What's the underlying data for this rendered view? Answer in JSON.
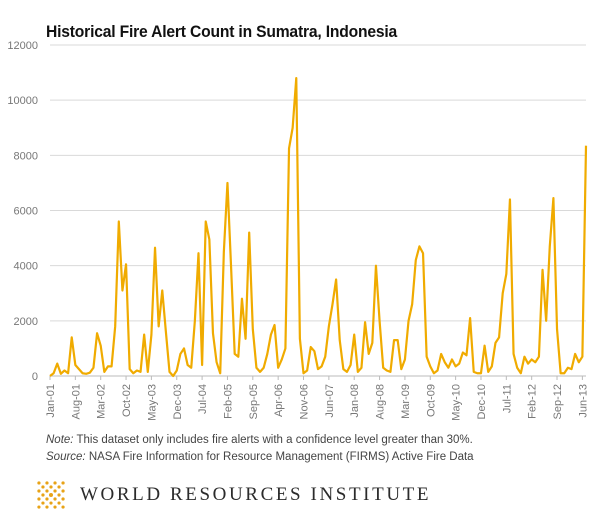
{
  "chart_data": {
    "type": "line",
    "title": "Historical Fire Alert Count in Sumatra, Indonesia",
    "xlabel": "",
    "ylabel": "",
    "ylim": [
      0,
      12000
    ],
    "yticks": [
      0,
      2000,
      4000,
      6000,
      8000,
      10000,
      12000
    ],
    "ytick_labels": [
      "0",
      "2000",
      "4000",
      "6000",
      "8000",
      "10000",
      "12000"
    ],
    "grid": true,
    "legend": "none",
    "line_color": "#f0ab00",
    "xtick_labels": [
      "Jan-01",
      "Aug-01",
      "Mar-02",
      "Oct-02",
      "May-03",
      "Dec-03",
      "Jul-04",
      "Feb-05",
      "Sep-05",
      "Apr-06",
      "Nov-06",
      "Jun-07",
      "Jan-08",
      "Aug-08",
      "Mar-09",
      "Oct-09",
      "May-10",
      "Dec-10",
      "Jul-11",
      "Feb-12",
      "Sep-12",
      "Jun-13"
    ],
    "series": [
      {
        "values": [
          0,
          100,
          450,
          80,
          200,
          100,
          1400,
          400,
          250,
          100,
          80,
          120,
          300,
          1550,
          1100,
          150,
          350,
          350,
          1800,
          5600,
          3100,
          4050,
          250,
          100,
          200,
          150,
          1500,
          150,
          1500,
          4650,
          1800,
          3100,
          1600,
          150,
          0,
          200,
          800,
          1000,
          400,
          300,
          2000,
          4450,
          400,
          5600,
          4950,
          1550,
          500,
          100,
          4500,
          7000,
          3950,
          800,
          700,
          2800,
          1350,
          5200,
          1700,
          300,
          150,
          300,
          800,
          1500,
          1850,
          300,
          600,
          1000,
          8250,
          9000,
          10800,
          1350,
          100,
          200,
          1050,
          900,
          250,
          350,
          700,
          1800,
          2600,
          3500,
          1300,
          250,
          150,
          400,
          1500,
          150,
          300,
          1950,
          800,
          1200,
          4000,
          2000,
          300,
          200,
          150,
          1300,
          1300,
          250,
          600,
          2000,
          2600,
          4200,
          4700,
          4450,
          700,
          350,
          100,
          200,
          800,
          500,
          300,
          600,
          350,
          450,
          850,
          750,
          2100,
          150,
          100,
          100,
          1100,
          150,
          350,
          1200,
          1400,
          3000,
          3700,
          6400,
          800,
          300,
          100,
          700,
          450,
          600,
          500,
          700,
          3850,
          2000,
          4700,
          6450,
          1700,
          100,
          100,
          300,
          250,
          800,
          500,
          700,
          8350
        ]
      }
    ]
  },
  "notes": {
    "note_label": "Note:",
    "note_text": " This dataset only includes fire alerts with a confidence level greater than 30%.",
    "source_label": "Source:",
    "source_text": " NASA Fire Information for Resource Management (FIRMS) Active Fire Data"
  },
  "footer": {
    "org_name": "WORLD RESOURCES INSTITUTE",
    "logo_color": "#e8a317"
  }
}
